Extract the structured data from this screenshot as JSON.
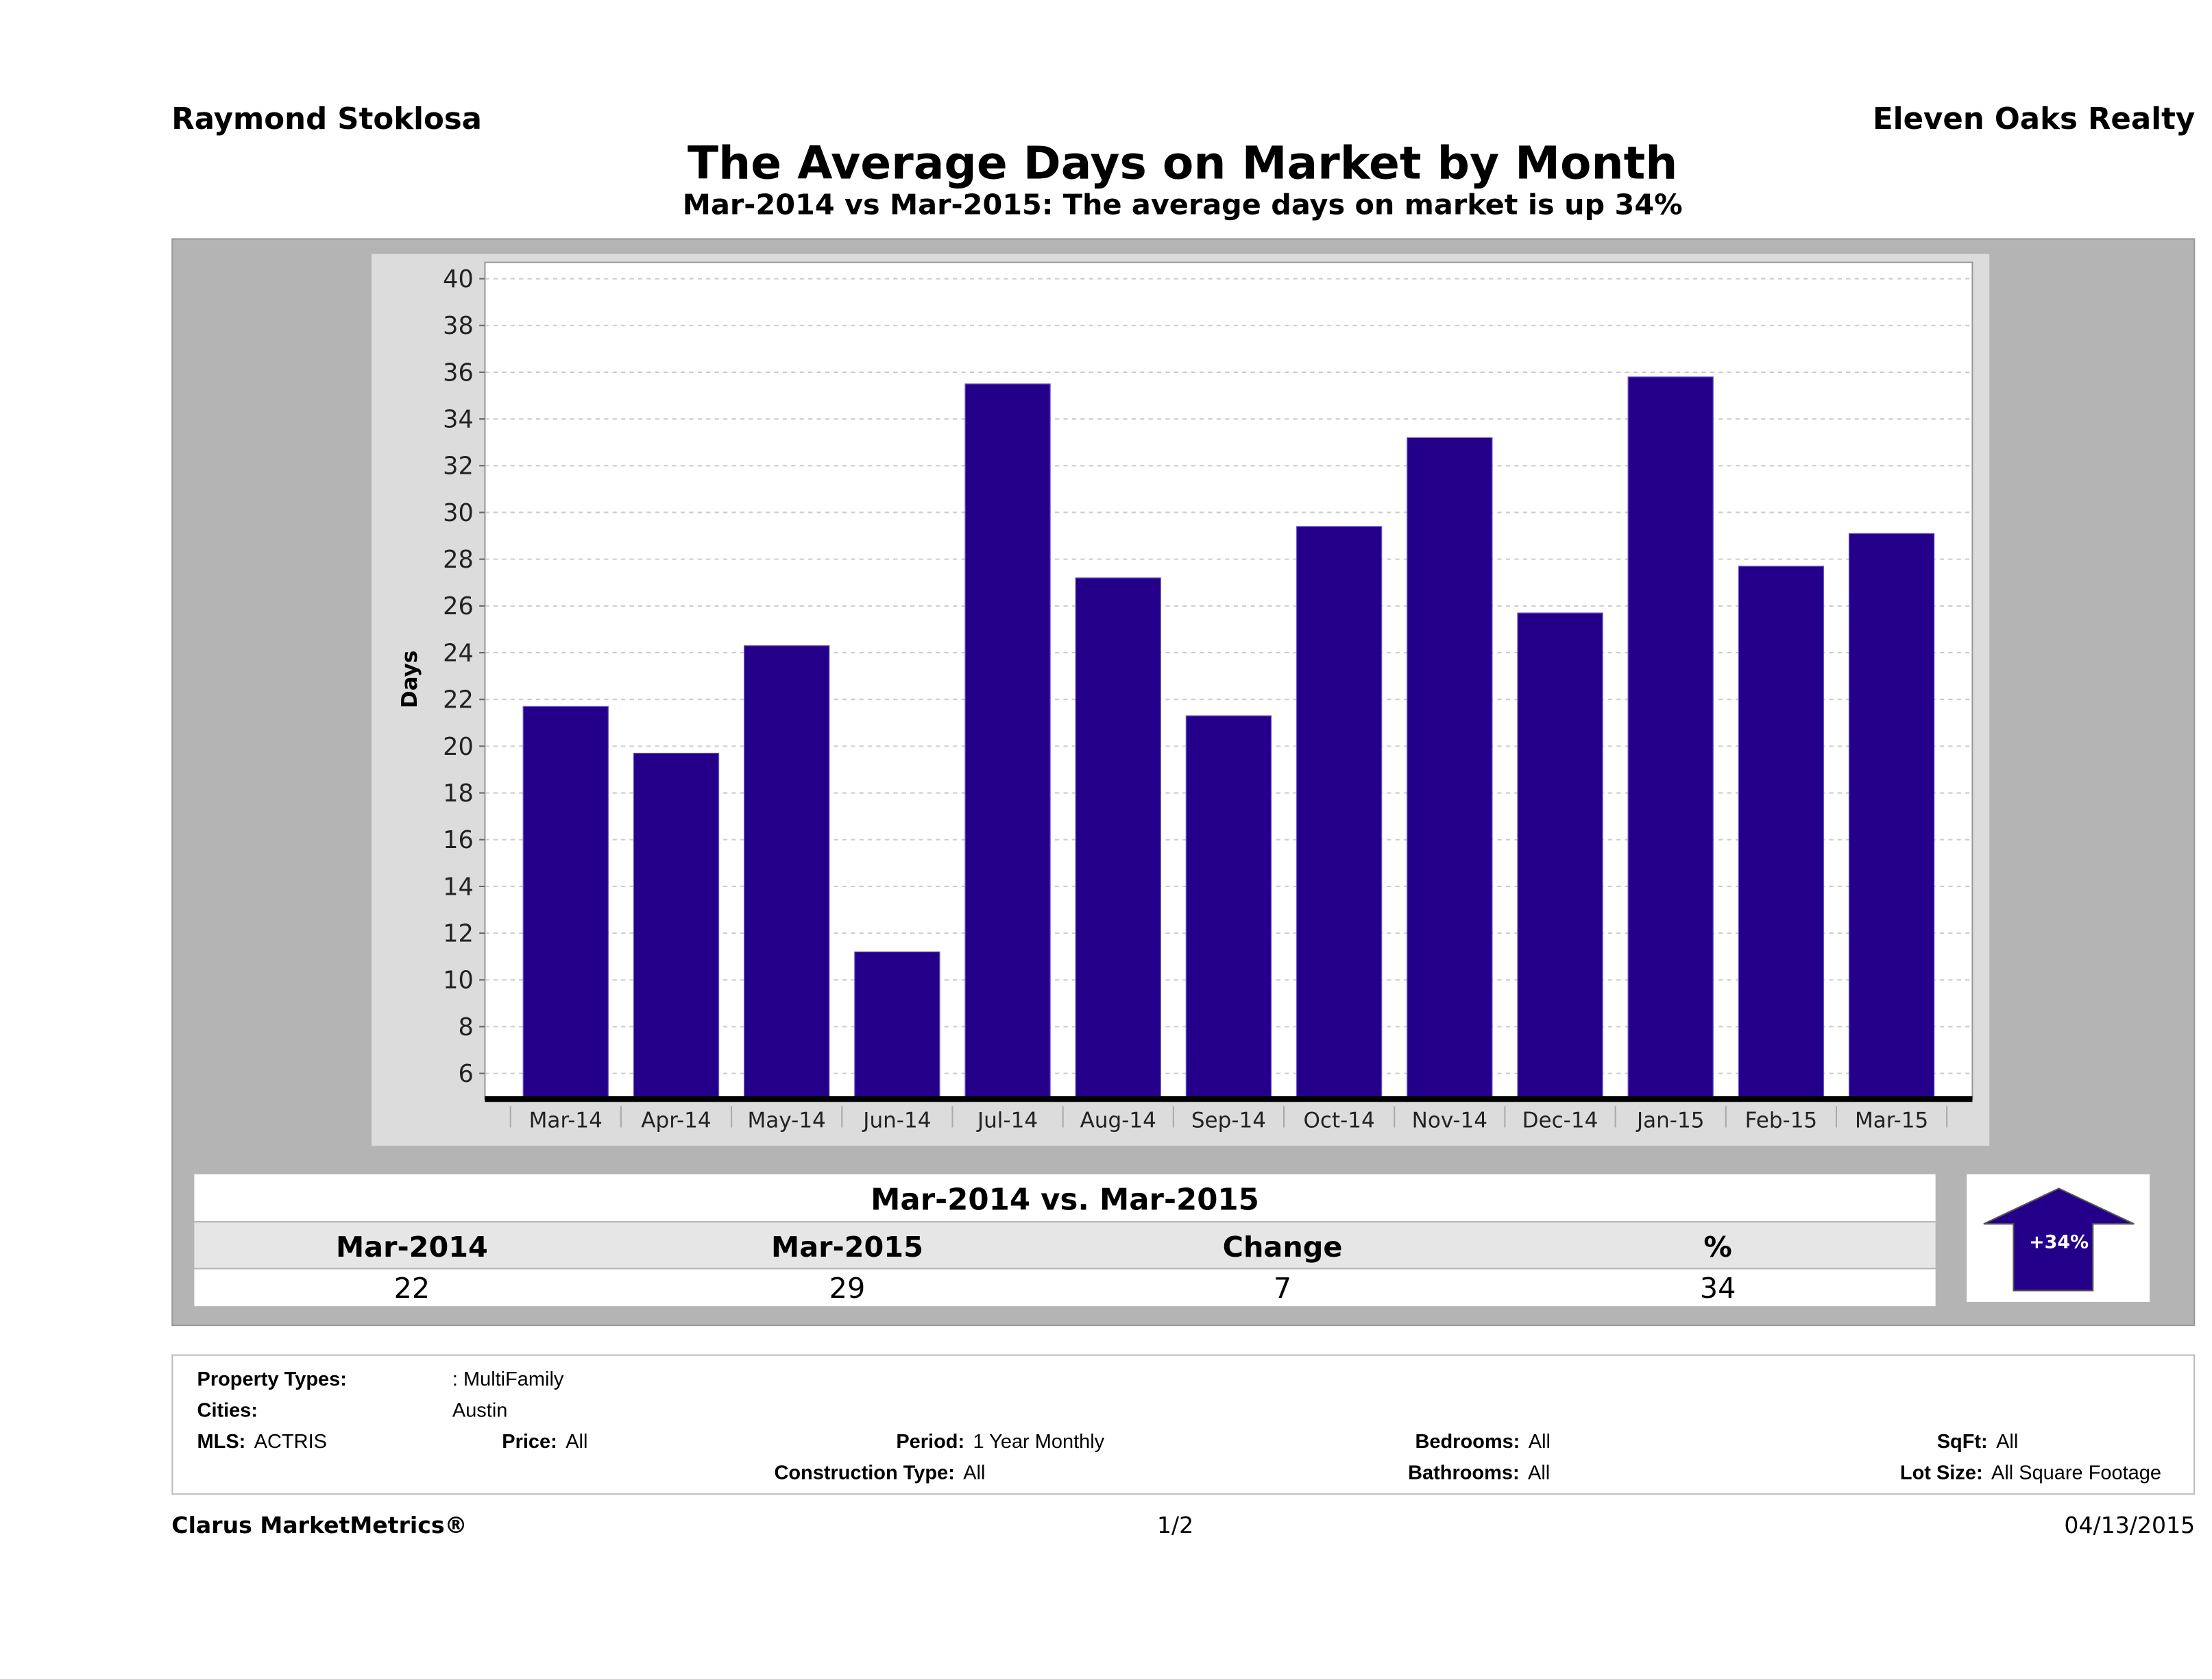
{
  "header": {
    "agent": "Raymond Stoklosa",
    "company": "Eleven Oaks Realty"
  },
  "title": "The Average Days on Market by Month",
  "subtitle": "Mar-2014 vs Mar-2015: The average days on market is up 34%",
  "chart_data": {
    "type": "bar",
    "categories": [
      "Mar-14",
      "Apr-14",
      "May-14",
      "Jun-14",
      "Jul-14",
      "Aug-14",
      "Sep-14",
      "Oct-14",
      "Nov-14",
      "Dec-14",
      "Jan-15",
      "Feb-15",
      "Mar-15"
    ],
    "values": [
      21.7,
      19.7,
      24.3,
      11.2,
      35.5,
      27.2,
      21.3,
      29.4,
      33.2,
      25.7,
      35.8,
      27.7,
      29.1
    ],
    "ylabel": "Days",
    "xlabel": "",
    "ylim": [
      4.9,
      40.7
    ],
    "yticks": [
      6,
      8,
      10,
      12,
      14,
      16,
      18,
      20,
      22,
      24,
      26,
      28,
      30,
      32,
      34,
      36,
      38,
      40
    ],
    "grid": true,
    "bar_color": "#24008a"
  },
  "comparison": {
    "title": "Mar-2014 vs. Mar-2015",
    "headers": [
      "Mar-2014",
      "Mar-2015",
      "Change",
      "%"
    ],
    "values": [
      "22",
      "29",
      "7",
      "34"
    ],
    "badge": "+34%",
    "badge_direction": "up",
    "badge_color": "#24008a"
  },
  "filters": {
    "property_types_label": "Property Types:",
    "property_types": ": MultiFamily",
    "cities_label": "Cities:",
    "cities": "Austin",
    "mls_label": "MLS:",
    "mls": "ACTRIS",
    "price_label": "Price:",
    "price": "All",
    "period_label": "Period:",
    "period": "1 Year Monthly",
    "construction_label": "Construction Type:",
    "construction": "All",
    "bedrooms_label": "Bedrooms:",
    "bedrooms": "All",
    "bathrooms_label": "Bathrooms:",
    "bathrooms": "All",
    "sqft_label": "SqFt:",
    "sqft": "All",
    "lot_label": "Lot Size:",
    "lot": "All Square Footage"
  },
  "footer": {
    "brand": "Clarus MarketMetrics®",
    "page": "1/2",
    "date": "04/13/2015"
  }
}
